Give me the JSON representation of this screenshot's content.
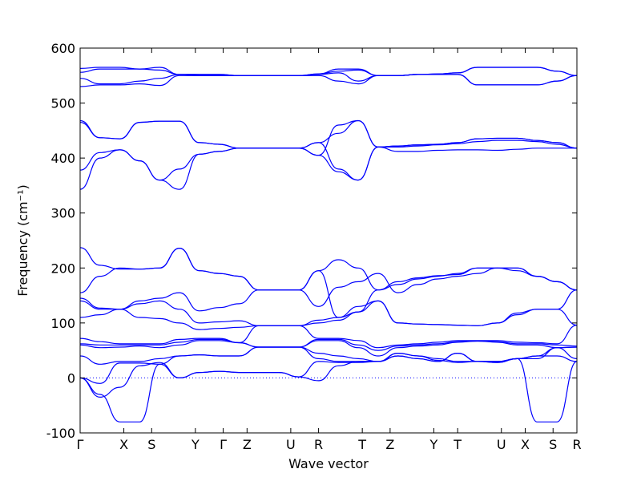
{
  "chart_data": {
    "type": "line",
    "title": "",
    "xlabel": "Wave vector",
    "ylabel": "Frequency (cm⁻¹)",
    "ylim": [
      -100,
      600
    ],
    "yticks": [
      -100,
      0,
      100,
      200,
      300,
      400,
      500,
      600
    ],
    "xticks": [
      {
        "label": "Γ",
        "x": 0
      },
      {
        "label": "X",
        "x": 0.55
      },
      {
        "label": "S",
        "x": 0.9
      },
      {
        "label": "Y",
        "x": 1.45
      },
      {
        "label": "Γ",
        "x": 1.8
      },
      {
        "label": "Z",
        "x": 2.1
      },
      {
        "label": "U",
        "x": 2.65
      },
      {
        "label": "R",
        "x": 3.0
      },
      {
        "label": "T",
        "x": 3.55
      },
      {
        "label": "Z",
        "x": 3.9
      },
      {
        "label": "Y",
        "x": 4.45
      },
      {
        "label": "T",
        "x": 4.75
      },
      {
        "label": "U",
        "x": 5.3
      },
      {
        "label": "X",
        "x": 5.6
      },
      {
        "label": "S",
        "x": 5.95
      },
      {
        "label": "R",
        "x": 6.25
      }
    ],
    "xlim": [
      0,
      6.25
    ],
    "zero_line": true,
    "line_color": "#0000ff",
    "series": [
      {
        "values": [
          0,
          -35,
          -17,
          22,
          28,
          0,
          10,
          12,
          10,
          10,
          10,
          2,
          -5,
          22,
          30,
          30,
          40,
          35,
          30,
          45,
          30,
          28,
          35,
          40,
          40,
          30
        ]
      },
      {
        "values": [
          0,
          -30,
          -80,
          -80,
          25,
          0,
          10,
          12,
          10,
          10,
          10,
          2,
          30,
          28,
          28,
          30,
          40,
          35,
          30,
          45,
          30,
          28,
          35,
          -80,
          -80,
          30
        ]
      },
      {
        "values": [
          0,
          -10,
          27,
          27,
          25,
          40,
          42,
          40,
          40,
          56,
          56,
          56,
          35,
          30,
          30,
          30,
          45,
          40,
          32,
          28,
          30,
          30,
          35,
          35,
          55,
          35
        ]
      },
      {
        "values": [
          40,
          25,
          30,
          30,
          35,
          40,
          42,
          40,
          40,
          56,
          56,
          56,
          45,
          40,
          35,
          30,
          45,
          40,
          35,
          30,
          30,
          30,
          35,
          40,
          55,
          56
        ]
      },
      {
        "values": [
          60,
          55,
          56,
          58,
          55,
          60,
          68,
          68,
          64,
          56,
          56,
          56,
          68,
          68,
          55,
          40,
          55,
          58,
          60,
          65,
          67,
          65,
          60,
          60,
          55,
          56
        ]
      },
      {
        "values": [
          62,
          60,
          60,
          60,
          60,
          65,
          70,
          70,
          64,
          56,
          56,
          56,
          70,
          70,
          60,
          50,
          58,
          60,
          62,
          66,
          67,
          66,
          62,
          62,
          60,
          58
        ]
      },
      {
        "values": [
          72,
          66,
          62,
          62,
          62,
          70,
          72,
          72,
          64,
          95,
          95,
          95,
          72,
          72,
          68,
          55,
          60,
          62,
          65,
          68,
          68,
          68,
          65,
          64,
          62,
          96
        ]
      },
      {
        "values": [
          110,
          115,
          125,
          110,
          108,
          100,
          88,
          90,
          92,
          95,
          95,
          95,
          100,
          105,
          120,
          140,
          100,
          98,
          97,
          96,
          95,
          100,
          115,
          125,
          125,
          96
        ]
      },
      {
        "values": [
          140,
          125,
          125,
          135,
          140,
          125,
          100,
          102,
          104,
          95,
          95,
          95,
          105,
          110,
          130,
          140,
          100,
          98,
          97,
          96,
          95,
          100,
          118,
          125,
          125,
          160
        ]
      },
      {
        "values": [
          145,
          127,
          125,
          140,
          145,
          155,
          122,
          128,
          135,
          160,
          160,
          160,
          130,
          165,
          175,
          190,
          155,
          170,
          180,
          185,
          190,
          200,
          200,
          185,
          175,
          160
        ]
      },
      {
        "values": [
          155,
          185,
          200,
          198,
          200,
          236,
          195,
          190,
          185,
          160,
          160,
          160,
          195,
          215,
          200,
          160,
          170,
          180,
          185,
          190,
          200,
          200,
          200,
          185,
          175,
          160
        ]
      },
      {
        "values": [
          237,
          205,
          198,
          198,
          200,
          236,
          195,
          190,
          185,
          160,
          160,
          160,
          195,
          110,
          120,
          160,
          175,
          182,
          186,
          188,
          200,
          200,
          195,
          185,
          175,
          160
        ]
      },
      {
        "values": [
          343,
          400,
          415,
          395,
          360,
          343,
          407,
          412,
          418,
          418,
          418,
          418,
          405,
          375,
          360,
          420,
          412,
          412,
          414,
          415,
          415,
          414,
          416,
          418,
          418,
          418
        ]
      },
      {
        "values": [
          378,
          410,
          415,
          395,
          360,
          380,
          407,
          412,
          418,
          418,
          418,
          418,
          405,
          460,
          468,
          420,
          420,
          422,
          424,
          426,
          430,
          432,
          432,
          430,
          425,
          418
        ]
      },
      {
        "values": [
          465,
          437,
          435,
          465,
          467,
          467,
          428,
          425,
          418,
          418,
          418,
          418,
          428,
          445,
          468,
          420,
          422,
          424,
          425,
          428,
          435,
          436,
          436,
          432,
          428,
          418
        ]
      },
      {
        "values": [
          468,
          437,
          435,
          465,
          467,
          467,
          428,
          425,
          418,
          418,
          418,
          418,
          428,
          380,
          360,
          420,
          422,
          424,
          425,
          428,
          435,
          436,
          436,
          432,
          428,
          418
        ]
      },
      {
        "values": [
          530,
          533,
          533,
          535,
          532,
          550,
          550,
          550,
          550,
          550,
          550,
          550,
          550,
          540,
          535,
          550,
          550,
          552,
          552,
          552,
          533,
          533,
          533,
          533,
          540,
          550
        ]
      },
      {
        "values": [
          545,
          535,
          535,
          540,
          545,
          552,
          550,
          550,
          550,
          550,
          550,
          550,
          552,
          555,
          540,
          550,
          550,
          552,
          552,
          552,
          533,
          533,
          533,
          533,
          540,
          550
        ]
      },
      {
        "values": [
          556,
          562,
          562,
          562,
          560,
          552,
          552,
          552,
          550,
          550,
          550,
          550,
          553,
          558,
          560,
          550,
          550,
          552,
          553,
          555,
          565,
          565,
          565,
          565,
          558,
          550
        ]
      },
      {
        "values": [
          563,
          565,
          565,
          562,
          565,
          552,
          552,
          552,
          550,
          550,
          550,
          550,
          553,
          562,
          562,
          550,
          550,
          552,
          553,
          555,
          565,
          565,
          565,
          565,
          558,
          550
        ]
      }
    ]
  }
}
